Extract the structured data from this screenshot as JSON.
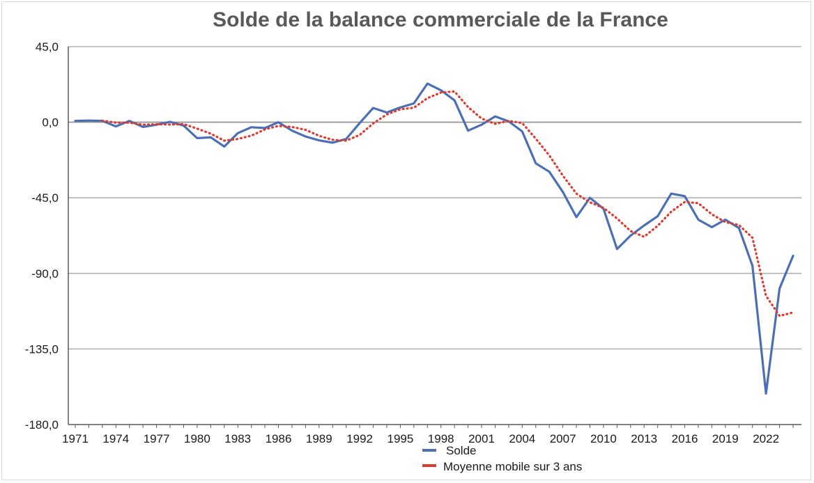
{
  "chart_data": {
    "type": "line",
    "title": "Solde de la balance commerciale de la France",
    "xlabel": "",
    "ylabel": "",
    "ylim": [
      -180,
      45
    ],
    "y_ticks": [
      "45,0",
      "0,0",
      "-45,0",
      "-90,0",
      "-135,0",
      "-180,0"
    ],
    "y_tick_values": [
      45,
      0,
      -45,
      -90,
      -135,
      -180
    ],
    "x_ticks": [
      "1971",
      "1974",
      "1977",
      "1980",
      "1983",
      "1986",
      "1989",
      "1992",
      "1995",
      "1998",
      "2001",
      "2004",
      "2007",
      "2010",
      "2013",
      "2016",
      "2019",
      "2022"
    ],
    "grid": "horizontal",
    "legend_position": "bottom",
    "x": [
      1971,
      1972,
      1973,
      1974,
      1975,
      1976,
      1977,
      1978,
      1979,
      1980,
      1981,
      1982,
      1983,
      1984,
      1985,
      1986,
      1987,
      1988,
      1989,
      1990,
      1991,
      1992,
      1993,
      1994,
      1995,
      1996,
      1997,
      1998,
      1999,
      2000,
      2001,
      2002,
      2003,
      2004,
      2005,
      2006,
      2007,
      2008,
      2009,
      2010,
      2011,
      2012,
      2013,
      2014,
      2015,
      2016,
      2017,
      2018,
      2019,
      2020,
      2021,
      2022,
      2023,
      2024
    ],
    "series": [
      {
        "name": "Solde",
        "color": "#4a6fb5",
        "style": "solid",
        "values": [
          0.8,
          1.0,
          0.8,
          -2.5,
          0.8,
          -2.8,
          -1.5,
          0.2,
          -2.0,
          -9.5,
          -9.0,
          -14.5,
          -6.5,
          -3.0,
          -3.5,
          0.0,
          -5.0,
          -8.5,
          -10.8,
          -12.2,
          -10.0,
          -0.5,
          8.5,
          5.8,
          8.8,
          11.2,
          23.0,
          19.0,
          13.0,
          -5.0,
          -1.5,
          3.5,
          0.5,
          -5.5,
          -24.5,
          -29.5,
          -41.5,
          -56.5,
          -45.0,
          -51.5,
          -75.5,
          -67.5,
          -61.5,
          -56.0,
          -42.5,
          -44.0,
          -58.0,
          -62.5,
          -58.0,
          -63.0,
          -85.5,
          -161.5,
          -99.0,
          -79.5
        ]
      },
      {
        "name": "Moyenne mobile sur 3 ans",
        "color": "#e03a2e",
        "style": "dotted",
        "values": [
          null,
          null,
          0.9,
          -0.2,
          -0.3,
          -1.5,
          -1.2,
          -1.4,
          -1.1,
          -3.8,
          -6.8,
          -11.0,
          -10.0,
          -8.0,
          -4.3,
          -2.2,
          -2.8,
          -4.5,
          -8.1,
          -10.5,
          -11.0,
          -7.6,
          -0.7,
          4.6,
          7.7,
          8.6,
          14.3,
          17.7,
          18.3,
          9.0,
          2.2,
          -1.0,
          0.8,
          -0.5,
          -9.8,
          -19.8,
          -31.8,
          -42.5,
          -47.7,
          -51.0,
          -57.3,
          -64.8,
          -68.2,
          -61.7,
          -53.3,
          -47.5,
          -48.2,
          -54.8,
          -59.5,
          -61.2,
          -68.8,
          -103.3,
          -115.3,
          -113.3
        ]
      }
    ]
  }
}
